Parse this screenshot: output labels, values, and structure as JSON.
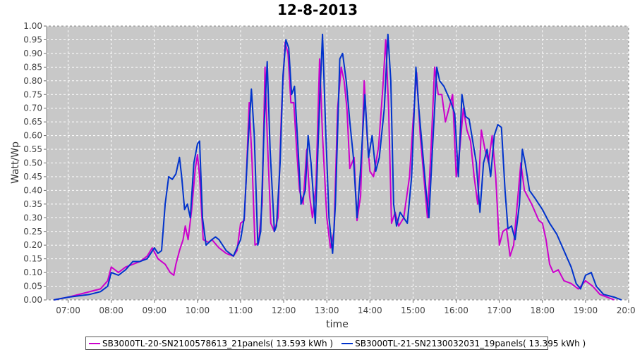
{
  "chart_data": {
    "type": "line",
    "title": "12-8-2013",
    "xlabel": "time",
    "ylabel": "Watt/Wp",
    "xlim": [
      "06:30",
      "20:00"
    ],
    "ylim": [
      0.0,
      1.0
    ],
    "grid": true,
    "legend_position": "bottom",
    "plot_background": "#c8c8c8",
    "x_ticks": [
      "07:00",
      "08:00",
      "09:00",
      "10:00",
      "11:00",
      "12:00",
      "13:00",
      "14:00",
      "15:00",
      "16:00",
      "17:00",
      "18:00",
      "19:00",
      "20:00"
    ],
    "y_ticks": [
      "0.00",
      "0.05",
      "0.10",
      "0.15",
      "0.20",
      "0.25",
      "0.30",
      "0.35",
      "0.40",
      "0.45",
      "0.50",
      "0.55",
      "0.60",
      "0.65",
      "0.70",
      "0.75",
      "0.80",
      "0.85",
      "0.90",
      "0.95",
      "1.00"
    ],
    "series": [
      {
        "name": "SB3000TL-20-SN2100578613_21panels( 13.593 kWh )",
        "color": "#cc00cc",
        "points": [
          [
            "06:40",
            0.0
          ],
          [
            "07:00",
            0.01
          ],
          [
            "07:30",
            0.03
          ],
          [
            "07:45",
            0.04
          ],
          [
            "07:55",
            0.07
          ],
          [
            "08:00",
            0.12
          ],
          [
            "08:10",
            0.1
          ],
          [
            "08:20",
            0.12
          ],
          [
            "08:30",
            0.13
          ],
          [
            "08:40",
            0.14
          ],
          [
            "08:50",
            0.16
          ],
          [
            "08:57",
            0.19
          ],
          [
            "09:05",
            0.15
          ],
          [
            "09:15",
            0.13
          ],
          [
            "09:22",
            0.1
          ],
          [
            "09:27",
            0.09
          ],
          [
            "09:30",
            0.13
          ],
          [
            "09:35",
            0.18
          ],
          [
            "09:40",
            0.22
          ],
          [
            "09:43",
            0.27
          ],
          [
            "09:47",
            0.22
          ],
          [
            "09:52",
            0.33
          ],
          [
            "09:57",
            0.48
          ],
          [
            "10:00",
            0.53
          ],
          [
            "10:03",
            0.45
          ],
          [
            "10:08",
            0.22
          ],
          [
            "10:15",
            0.21
          ],
          [
            "10:20",
            0.22
          ],
          [
            "10:30",
            0.19
          ],
          [
            "10:40",
            0.17
          ],
          [
            "10:50",
            0.16
          ],
          [
            "10:55",
            0.18
          ],
          [
            "11:00",
            0.28
          ],
          [
            "11:05",
            0.29
          ],
          [
            "11:08",
            0.45
          ],
          [
            "11:12",
            0.72
          ],
          [
            "11:16",
            0.5
          ],
          [
            "11:20",
            0.2
          ],
          [
            "11:25",
            0.21
          ],
          [
            "11:30",
            0.35
          ],
          [
            "11:34",
            0.85
          ],
          [
            "11:37",
            0.6
          ],
          [
            "11:42",
            0.28
          ],
          [
            "11:47",
            0.25
          ],
          [
            "11:52",
            0.3
          ],
          [
            "11:57",
            0.7
          ],
          [
            "12:02",
            0.94
          ],
          [
            "12:06",
            0.9
          ],
          [
            "12:10",
            0.72
          ],
          [
            "12:14",
            0.72
          ],
          [
            "12:18",
            0.55
          ],
          [
            "12:22",
            0.4
          ],
          [
            "12:27",
            0.35
          ],
          [
            "12:32",
            0.55
          ],
          [
            "12:36",
            0.38
          ],
          [
            "12:40",
            0.3
          ],
          [
            "12:45",
            0.42
          ],
          [
            "12:50",
            0.88
          ],
          [
            "12:54",
            0.6
          ],
          [
            "13:00",
            0.3
          ],
          [
            "13:05",
            0.19
          ],
          [
            "13:10",
            0.25
          ],
          [
            "13:15",
            0.7
          ],
          [
            "13:20",
            0.85
          ],
          [
            "13:24",
            0.8
          ],
          [
            "13:28",
            0.7
          ],
          [
            "13:32",
            0.48
          ],
          [
            "13:38",
            0.52
          ],
          [
            "13:42",
            0.29
          ],
          [
            "13:47",
            0.38
          ],
          [
            "13:52",
            0.8
          ],
          [
            "13:56",
            0.6
          ],
          [
            "14:00",
            0.47
          ],
          [
            "14:05",
            0.45
          ],
          [
            "14:12",
            0.56
          ],
          [
            "14:18",
            0.78
          ],
          [
            "14:22",
            0.95
          ],
          [
            "14:26",
            0.7
          ],
          [
            "14:30",
            0.28
          ],
          [
            "14:35",
            0.32
          ],
          [
            "14:40",
            0.27
          ],
          [
            "14:47",
            0.3
          ],
          [
            "14:55",
            0.45
          ],
          [
            "15:00",
            0.65
          ],
          [
            "15:05",
            0.83
          ],
          [
            "15:10",
            0.6
          ],
          [
            "15:15",
            0.45
          ],
          [
            "15:20",
            0.3
          ],
          [
            "15:25",
            0.55
          ],
          [
            "15:30",
            0.85
          ],
          [
            "15:35",
            0.75
          ],
          [
            "15:40",
            0.75
          ],
          [
            "15:45",
            0.65
          ],
          [
            "15:50",
            0.7
          ],
          [
            "15:55",
            0.75
          ],
          [
            "16:00",
            0.45
          ],
          [
            "16:05",
            0.55
          ],
          [
            "16:10",
            0.7
          ],
          [
            "16:15",
            0.62
          ],
          [
            "16:20",
            0.58
          ],
          [
            "16:25",
            0.45
          ],
          [
            "16:30",
            0.35
          ],
          [
            "16:35",
            0.62
          ],
          [
            "16:40",
            0.55
          ],
          [
            "16:45",
            0.5
          ],
          [
            "16:50",
            0.6
          ],
          [
            "16:55",
            0.45
          ],
          [
            "17:00",
            0.2
          ],
          [
            "17:05",
            0.25
          ],
          [
            "17:10",
            0.26
          ],
          [
            "17:15",
            0.16
          ],
          [
            "17:20",
            0.2
          ],
          [
            "17:25",
            0.35
          ],
          [
            "17:30",
            0.5
          ],
          [
            "17:35",
            0.4
          ],
          [
            "17:45",
            0.35
          ],
          [
            "17:55",
            0.29
          ],
          [
            "18:00",
            0.28
          ],
          [
            "18:05",
            0.22
          ],
          [
            "18:10",
            0.13
          ],
          [
            "18:15",
            0.1
          ],
          [
            "18:22",
            0.11
          ],
          [
            "18:30",
            0.07
          ],
          [
            "18:40",
            0.06
          ],
          [
            "18:50",
            0.04
          ],
          [
            "19:00",
            0.07
          ],
          [
            "19:10",
            0.05
          ],
          [
            "19:20",
            0.02
          ],
          [
            "19:40",
            0.0
          ]
        ]
      },
      {
        "name": "SB3000TL-21-SN2130032031_19panels( 13.395 kWh )",
        "color": "#0033cc",
        "points": [
          [
            "06:40",
            0.0
          ],
          [
            "07:00",
            0.01
          ],
          [
            "07:30",
            0.02
          ],
          [
            "07:45",
            0.03
          ],
          [
            "07:55",
            0.05
          ],
          [
            "08:00",
            0.1
          ],
          [
            "08:10",
            0.09
          ],
          [
            "08:20",
            0.11
          ],
          [
            "08:30",
            0.14
          ],
          [
            "08:40",
            0.14
          ],
          [
            "08:50",
            0.15
          ],
          [
            "09:00",
            0.19
          ],
          [
            "09:05",
            0.17
          ],
          [
            "09:10",
            0.18
          ],
          [
            "09:15",
            0.35
          ],
          [
            "09:20",
            0.45
          ],
          [
            "09:25",
            0.44
          ],
          [
            "09:30",
            0.46
          ],
          [
            "09:35",
            0.52
          ],
          [
            "09:38",
            0.45
          ],
          [
            "09:42",
            0.33
          ],
          [
            "09:46",
            0.35
          ],
          [
            "09:50",
            0.3
          ],
          [
            "09:55",
            0.5
          ],
          [
            "10:00",
            0.57
          ],
          [
            "10:03",
            0.58
          ],
          [
            "10:07",
            0.3
          ],
          [
            "10:12",
            0.2
          ],
          [
            "10:20",
            0.22
          ],
          [
            "10:25",
            0.23
          ],
          [
            "10:30",
            0.22
          ],
          [
            "10:40",
            0.18
          ],
          [
            "10:50",
            0.16
          ],
          [
            "11:00",
            0.22
          ],
          [
            "11:05",
            0.3
          ],
          [
            "11:10",
            0.55
          ],
          [
            "11:15",
            0.77
          ],
          [
            "11:19",
            0.6
          ],
          [
            "11:24",
            0.2
          ],
          [
            "11:28",
            0.25
          ],
          [
            "11:33",
            0.65
          ],
          [
            "11:37",
            0.87
          ],
          [
            "11:41",
            0.55
          ],
          [
            "11:47",
            0.25
          ],
          [
            "11:50",
            0.27
          ],
          [
            "11:55",
            0.5
          ],
          [
            "11:59",
            0.82
          ],
          [
            "12:03",
            0.95
          ],
          [
            "12:07",
            0.92
          ],
          [
            "12:11",
            0.75
          ],
          [
            "12:15",
            0.78
          ],
          [
            "12:20",
            0.55
          ],
          [
            "12:24",
            0.35
          ],
          [
            "12:30",
            0.4
          ],
          [
            "12:34",
            0.6
          ],
          [
            "12:38",
            0.5
          ],
          [
            "12:44",
            0.28
          ],
          [
            "12:50",
            0.72
          ],
          [
            "12:54",
            0.97
          ],
          [
            "12:58",
            0.65
          ],
          [
            "13:03",
            0.3
          ],
          [
            "13:08",
            0.17
          ],
          [
            "13:12",
            0.35
          ],
          [
            "13:18",
            0.88
          ],
          [
            "13:22",
            0.9
          ],
          [
            "13:27",
            0.8
          ],
          [
            "13:32",
            0.65
          ],
          [
            "13:37",
            0.52
          ],
          [
            "13:42",
            0.3
          ],
          [
            "13:47",
            0.48
          ],
          [
            "13:53",
            0.75
          ],
          [
            "13:58",
            0.52
          ],
          [
            "14:03",
            0.6
          ],
          [
            "14:08",
            0.47
          ],
          [
            "14:13",
            0.52
          ],
          [
            "14:20",
            0.7
          ],
          [
            "14:25",
            0.97
          ],
          [
            "14:29",
            0.8
          ],
          [
            "14:33",
            0.35
          ],
          [
            "14:37",
            0.27
          ],
          [
            "14:42",
            0.32
          ],
          [
            "14:47",
            0.3
          ],
          [
            "14:52",
            0.28
          ],
          [
            "14:58",
            0.45
          ],
          [
            "15:04",
            0.85
          ],
          [
            "15:08",
            0.7
          ],
          [
            "15:13",
            0.55
          ],
          [
            "15:18",
            0.4
          ],
          [
            "15:22",
            0.3
          ],
          [
            "15:27",
            0.55
          ],
          [
            "15:33",
            0.85
          ],
          [
            "15:37",
            0.8
          ],
          [
            "15:43",
            0.78
          ],
          [
            "15:48",
            0.75
          ],
          [
            "15:53",
            0.72
          ],
          [
            "15:58",
            0.68
          ],
          [
            "16:03",
            0.45
          ],
          [
            "16:08",
            0.75
          ],
          [
            "16:13",
            0.67
          ],
          [
            "16:18",
            0.66
          ],
          [
            "16:23",
            0.58
          ],
          [
            "16:28",
            0.5
          ],
          [
            "16:33",
            0.32
          ],
          [
            "16:38",
            0.5
          ],
          [
            "16:43",
            0.55
          ],
          [
            "16:48",
            0.45
          ],
          [
            "16:53",
            0.6
          ],
          [
            "16:58",
            0.64
          ],
          [
            "17:03",
            0.63
          ],
          [
            "17:08",
            0.4
          ],
          [
            "17:12",
            0.26
          ],
          [
            "17:17",
            0.27
          ],
          [
            "17:22",
            0.22
          ],
          [
            "17:28",
            0.35
          ],
          [
            "17:32",
            0.55
          ],
          [
            "17:36",
            0.5
          ],
          [
            "17:42",
            0.4
          ],
          [
            "17:50",
            0.37
          ],
          [
            "18:00",
            0.33
          ],
          [
            "18:10",
            0.28
          ],
          [
            "18:20",
            0.24
          ],
          [
            "18:30",
            0.18
          ],
          [
            "18:40",
            0.12
          ],
          [
            "18:47",
            0.06
          ],
          [
            "18:53",
            0.04
          ],
          [
            "19:00",
            0.09
          ],
          [
            "19:08",
            0.1
          ],
          [
            "19:15",
            0.05
          ],
          [
            "19:25",
            0.02
          ],
          [
            "19:40",
            0.01
          ],
          [
            "19:50",
            0.0
          ]
        ]
      }
    ]
  }
}
